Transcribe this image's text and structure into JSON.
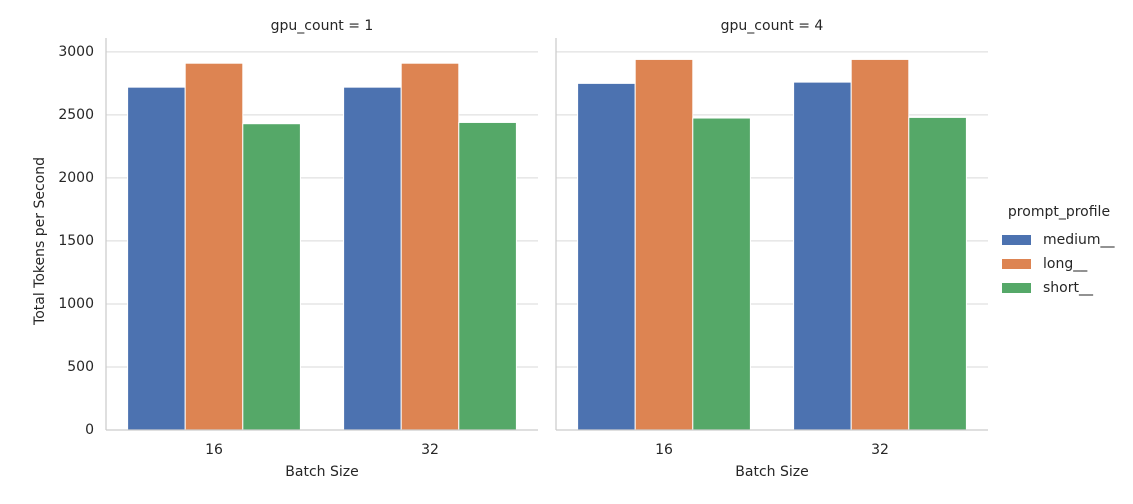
{
  "chart_data": {
    "type": "bar",
    "xlabel": "Batch Size",
    "ylabel": "Total Tokens per Second",
    "legend_title": "prompt_profile",
    "categories": [
      "16",
      "32"
    ],
    "series": [
      {
        "name": "medium__",
        "color": "#4c72b0"
      },
      {
        "name": "long__",
        "color": "#dd8452"
      },
      {
        "name": "short__",
        "color": "#55a868"
      }
    ],
    "ylim": [
      0,
      3110
    ],
    "yticks": [
      0,
      500,
      1000,
      1500,
      2000,
      2500,
      3000
    ],
    "grid": true,
    "facets": [
      {
        "title": "gpu_count = 1",
        "values": [
          [
            2720,
            2720
          ],
          [
            2910,
            2910
          ],
          [
            2430,
            2440
          ]
        ]
      },
      {
        "title": "gpu_count = 4",
        "values": [
          [
            2750,
            2760
          ],
          [
            2940,
            2940
          ],
          [
            2475,
            2480
          ]
        ]
      }
    ]
  }
}
